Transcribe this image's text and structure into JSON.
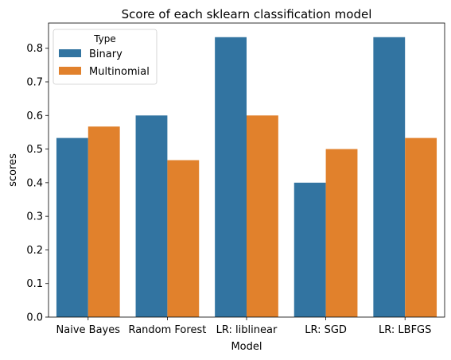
{
  "chart_data": {
    "type": "bar",
    "title": "Score of each sklearn classification model",
    "xlabel": "Model",
    "ylabel": "scores",
    "categories": [
      "Naive Bayes",
      "Random Forest",
      "LR: liblinear",
      "LR: SGD",
      "LR: LBFGS"
    ],
    "series": [
      {
        "name": "Binary",
        "values": [
          0.533,
          0.6,
          0.833,
          0.4,
          0.833
        ],
        "color": "#3274a1"
      },
      {
        "name": "Multinomial",
        "values": [
          0.567,
          0.467,
          0.6,
          0.5,
          0.533
        ],
        "color": "#e1812c"
      }
    ],
    "ylim": [
      0,
      0.875
    ],
    "yticks": [
      "0.0",
      "0.1",
      "0.2",
      "0.3",
      "0.4",
      "0.5",
      "0.6",
      "0.7",
      "0.8"
    ],
    "legend": {
      "title": "Type",
      "placement": "top-left"
    },
    "grid": false
  }
}
